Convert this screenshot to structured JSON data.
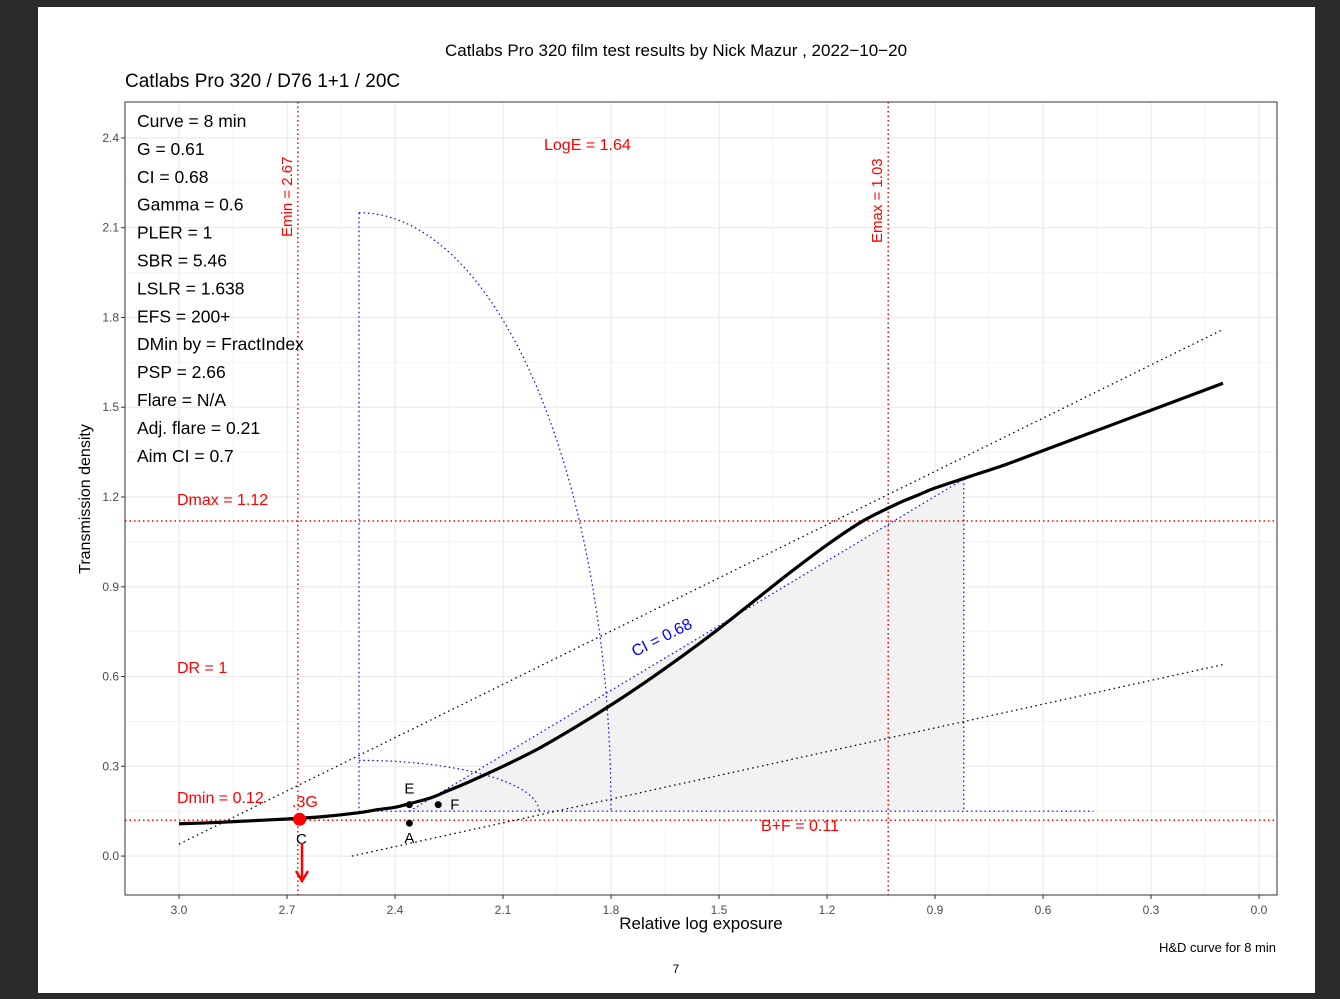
{
  "page": {
    "main_title": "Catlabs Pro 320 film test results by Nick Mazur , 2022−10−20",
    "subtitle": "Catlabs Pro 320 / D76 1+1 / 20C",
    "caption": "H&D curve for 8 min",
    "page_number": "7"
  },
  "colors": {
    "curve": "#000000",
    "ref_red": "#ff0000",
    "ci_blue": "#0000ff",
    "shade": "#f2f2f2",
    "grid_major": "#ebebeb",
    "grid_minor": "#f4f4f4"
  },
  "stats": [
    "Curve =  8 min",
    "G =  0.61",
    "CI =  0.68",
    "Gamma =  0.6",
    "PLER =  1",
    "SBR =  5.46",
    "LSLR =  1.638",
    "EFS = 200+",
    "DMin by = FractIndex",
    "PSP = 2.66",
    "Flare = N/A",
    "Adj. flare = 0.21",
    "Aim CI =  0.7"
  ],
  "chart_data": {
    "type": "line",
    "xlabel": "Relative log exposure",
    "ylabel": "Transmission density",
    "xlim": [
      3.15,
      -0.05
    ],
    "ylim": [
      -0.13,
      2.52
    ],
    "x_reversed": true,
    "grid": true,
    "x_ticks": [
      3.0,
      2.7,
      2.4,
      2.1,
      1.8,
      1.5,
      1.2,
      0.9,
      0.6,
      0.3,
      0.0
    ],
    "x_tick_labels": [
      "3.0",
      "2.7",
      "2.4",
      "2.1",
      "1.8",
      "1.5",
      "1.2",
      "0.9",
      "0.6",
      "0.3",
      "0.0"
    ],
    "y_ticks": [
      0.0,
      0.3,
      0.6,
      0.9,
      1.2,
      1.5,
      1.8,
      2.1,
      2.4
    ],
    "y_tick_labels": [
      "0.0",
      "0.3",
      "0.6",
      "0.9",
      "1.2",
      "1.5",
      "1.8",
      "2.1",
      "2.4"
    ],
    "series": [
      {
        "x": [
          3.0,
          2.9,
          2.8,
          2.7,
          2.6,
          2.5,
          2.45,
          2.4,
          2.36,
          2.3,
          2.25,
          2.2,
          2.1,
          2.0,
          1.9,
          1.8,
          1.7,
          1.6,
          1.5,
          1.4,
          1.3,
          1.2,
          1.1,
          1.0,
          0.95,
          0.9,
          0.8,
          0.7,
          0.6,
          0.5,
          0.4,
          0.3,
          0.2,
          0.1
        ],
        "y": [
          0.108,
          0.112,
          0.118,
          0.124,
          0.132,
          0.145,
          0.155,
          0.163,
          0.175,
          0.195,
          0.22,
          0.245,
          0.3,
          0.36,
          0.43,
          0.505,
          0.585,
          0.67,
          0.76,
          0.855,
          0.95,
          1.04,
          1.12,
          1.18,
          1.205,
          1.23,
          1.27,
          1.31,
          1.355,
          1.4,
          1.445,
          1.49,
          1.535,
          1.58
        ]
      }
    ],
    "reference_lines": [
      {
        "orientation": "vertical",
        "x": 2.67,
        "label": "Emin = 2.67"
      },
      {
        "orientation": "vertical",
        "x": 1.03,
        "label": "Emax = 1.03"
      },
      {
        "orientation": "horizontal",
        "y": 1.12,
        "label": "Dmax = 1.12"
      },
      {
        "orientation": "horizontal",
        "y": 0.12,
        "label": "Dmin = 0.12"
      }
    ],
    "tangent_lines": [
      {
        "x": [
          3.0,
          0.1
        ],
        "y": [
          0.04,
          1.76
        ]
      },
      {
        "x": [
          2.52,
          0.1
        ],
        "y": [
          0.0,
          0.64
        ]
      }
    ],
    "ci_triangle": {
      "x": [
        2.36,
        0.82,
        0.82
      ],
      "y": [
        0.15,
        1.26,
        0.15
      ]
    },
    "ci_label": "CI = 0.68",
    "arcs": [
      {
        "cx": 2.5,
        "cy": 0.15,
        "rx": 0.7,
        "ry": 2.0
      },
      {
        "cx": 2.5,
        "cy": 0.15,
        "rx": 0.5,
        "ry": 0.17
      }
    ],
    "arc_base_y": 0.15,
    "arc_base_x": [
      2.5,
      0.46
    ],
    "points": [
      {
        "label": "E",
        "x": 2.36,
        "y": 0.172
      },
      {
        "label": "F",
        "x": 2.28,
        "y": 0.172
      },
      {
        "label": "A",
        "x": 2.36,
        "y": 0.11
      }
    ],
    "point_C": {
      "label": "C",
      "x": 2.665,
      "y": 0.123,
      "tag": ".3G"
    },
    "annotations": {
      "loge": "LogE =  1.64",
      "dr": "DR = 1",
      "bf": "B+F =  0.11",
      "emin": "Emin = 2.67",
      "emax": "Emax = 1.03",
      "dmax": "Dmax = 1.12",
      "dmin": "Dmin = 0.12",
      "point_c_label": "C",
      "point_c_tag": ".3G"
    }
  }
}
